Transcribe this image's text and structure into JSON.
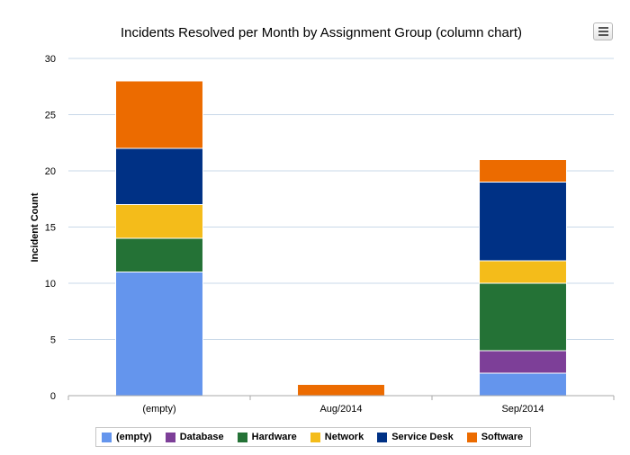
{
  "chart_data": {
    "type": "bar",
    "stacked": true,
    "title": "Incidents Resolved per Month by Assignment Group (column chart)",
    "ylabel": "Incident Count",
    "xlabel": "",
    "ylim": [
      0,
      30
    ],
    "yticks": [
      0,
      5,
      10,
      15,
      20,
      25,
      30
    ],
    "grid": true,
    "legend_position": "bottom",
    "categories": [
      "(empty)",
      "Aug/2014",
      "Sep/2014"
    ],
    "series": [
      {
        "name": "(empty)",
        "color": "#6495ed",
        "values": [
          11,
          0,
          2
        ]
      },
      {
        "name": "Database",
        "color": "#7d3f98",
        "values": [
          0,
          0,
          2
        ]
      },
      {
        "name": "Hardware",
        "color": "#247236",
        "values": [
          3,
          0,
          6
        ]
      },
      {
        "name": "Network",
        "color": "#f4bc1a",
        "values": [
          3,
          0,
          2
        ]
      },
      {
        "name": "Service Desk",
        "color": "#003185",
        "values": [
          5,
          0,
          7
        ]
      },
      {
        "name": "Software",
        "color": "#ec6b00",
        "values": [
          6,
          1,
          2
        ]
      }
    ]
  },
  "menu": {
    "icon": "hamburger-menu-icon"
  }
}
